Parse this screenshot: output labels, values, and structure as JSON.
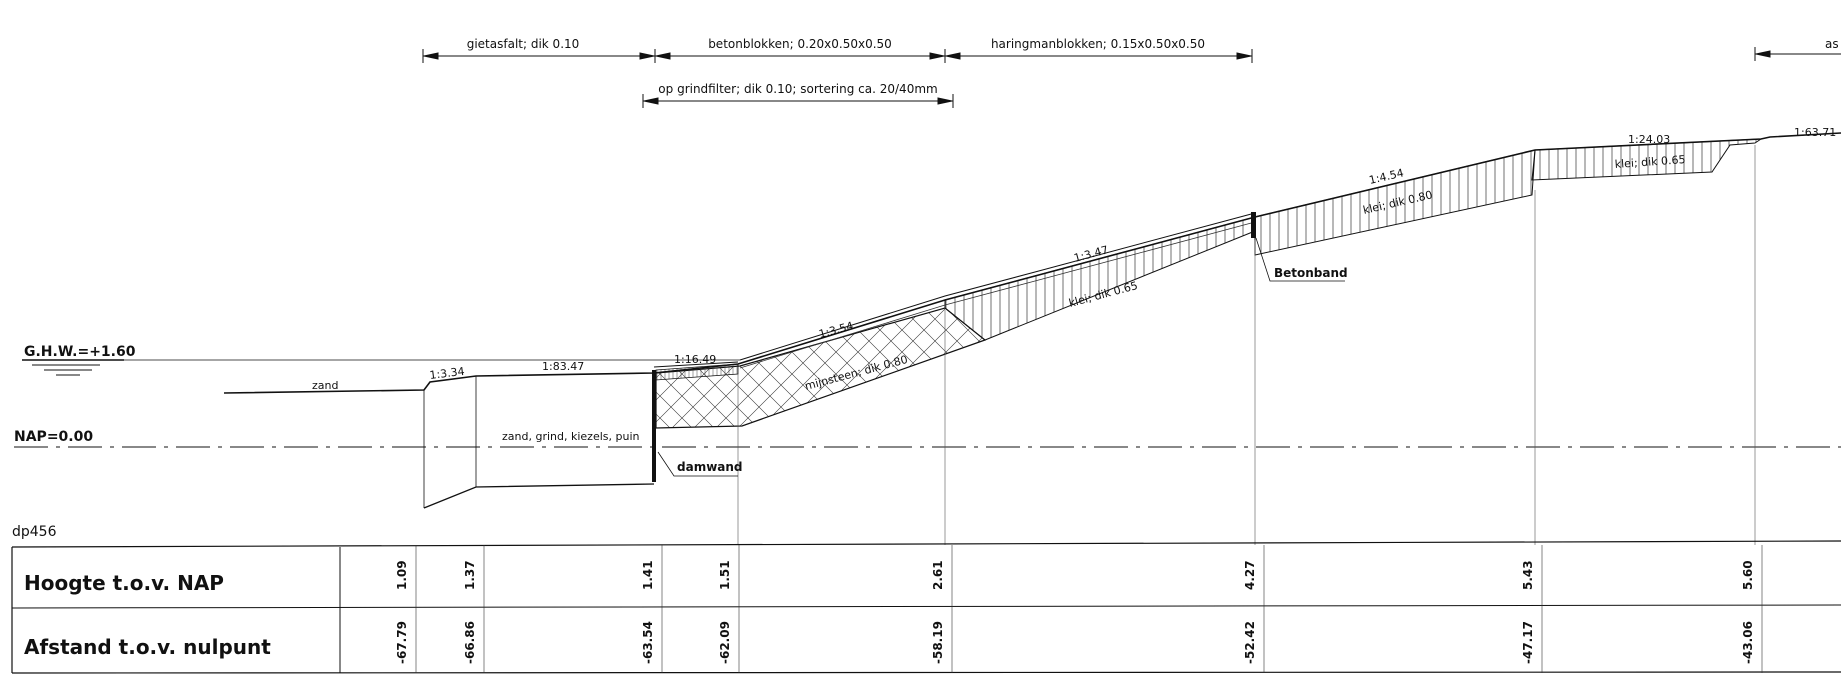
{
  "drawing_id": "dp456",
  "levels": {
    "ghw": "G.H.W.=+1.60",
    "nap": "NAP=0.00"
  },
  "top_dimensions": [
    {
      "label": "gietasfalt; dik 0.10"
    },
    {
      "label": "betonblokken; 0.20x0.50x0.50"
    },
    {
      "label": "haringmanblokken; 0.15x0.50x0.50"
    },
    {
      "label": "as"
    },
    {
      "label": "op grindfilter; dik 0.10; sortering ca. 20/40mm"
    }
  ],
  "slopes": [
    "1:3.34",
    "1:83.47",
    "1:16.49",
    "1:3.54",
    "1:3.47",
    "1:4.54",
    "1:24.03",
    "1:63.71"
  ],
  "materials": {
    "zand": "zand",
    "fill": "zand, grind, kiezels, puin",
    "mijnsteen": "mijnsteen; dik 0.80",
    "klei1": "klei; dik 0.65",
    "klei2": "klei; dik 0.80",
    "klei3": "klei; dik 0.65"
  },
  "callouts": {
    "damwand": "damwand",
    "betonband": "Betonband"
  },
  "table": {
    "row1_label": "Hoogte t.o.v. NAP",
    "row2_label": "Afstand t.o.v. nulpunt",
    "columns": [
      {
        "hoogte": "1.09",
        "afstand": "-67.79"
      },
      {
        "hoogte": "1.37",
        "afstand": "-66.86"
      },
      {
        "hoogte": "1.41",
        "afstand": "-63.54"
      },
      {
        "hoogte": "1.51",
        "afstand": "-62.09"
      },
      {
        "hoogte": "2.61",
        "afstand": "-58.19"
      },
      {
        "hoogte": "4.27",
        "afstand": "-52.42"
      },
      {
        "hoogte": "5.43",
        "afstand": "-47.17"
      },
      {
        "hoogte": "5.60",
        "afstand": "-43.06"
      }
    ]
  }
}
